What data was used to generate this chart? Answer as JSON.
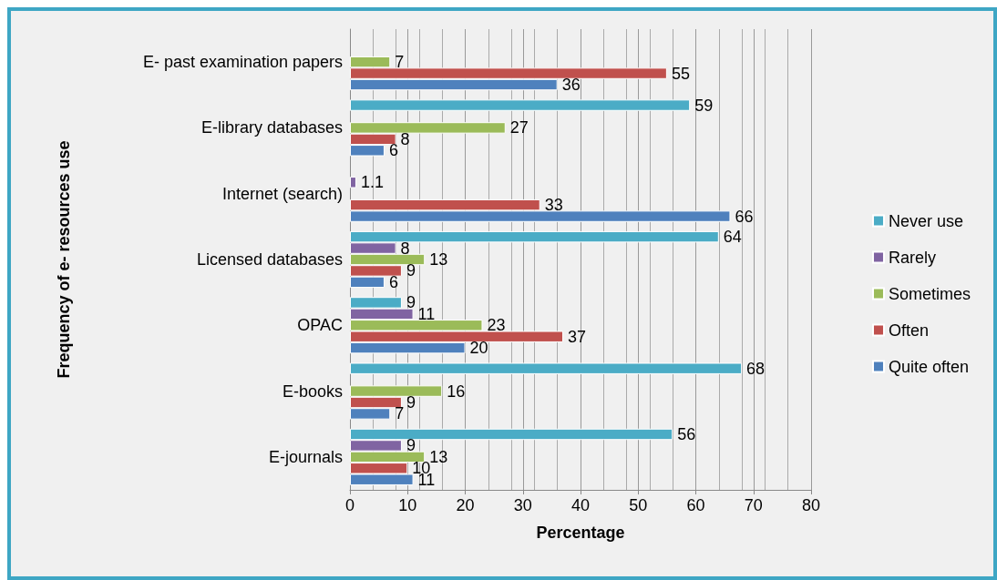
{
  "chart_data": {
    "type": "bar",
    "orientation": "horizontal",
    "xlabel": "Percentage",
    "ylabel": "Frequency of e- resources use",
    "categories": [
      "E- past examination papers",
      "E-library databases",
      "Internet (search)",
      "Licensed databases",
      "OPAC",
      "E-books",
      "E-journals"
    ],
    "series": [
      {
        "name": "Never use",
        "color": "#4bacc6",
        "values": [
          null,
          59,
          null,
          64,
          9,
          68,
          56
        ]
      },
      {
        "name": "Rarely",
        "color": "#8064a2",
        "values": [
          null,
          null,
          1.1,
          8,
          11,
          null,
          9
        ]
      },
      {
        "name": "Sometimes",
        "color": "#9bbb59",
        "values": [
          7,
          27,
          null,
          13,
          23,
          16,
          13
        ]
      },
      {
        "name": "Often",
        "color": "#c0504d",
        "values": [
          55,
          8,
          33,
          9,
          37,
          9,
          10
        ]
      },
      {
        "name": "Quite often",
        "color": "#4f81bd",
        "values": [
          36,
          6,
          66,
          6,
          20,
          7,
          11
        ]
      }
    ],
    "xlim": [
      0,
      80
    ],
    "xticks": [
      0,
      10,
      20,
      30,
      40,
      50,
      60,
      70,
      80
    ],
    "grid": "x",
    "legend": "right",
    "data_labels": true
  }
}
